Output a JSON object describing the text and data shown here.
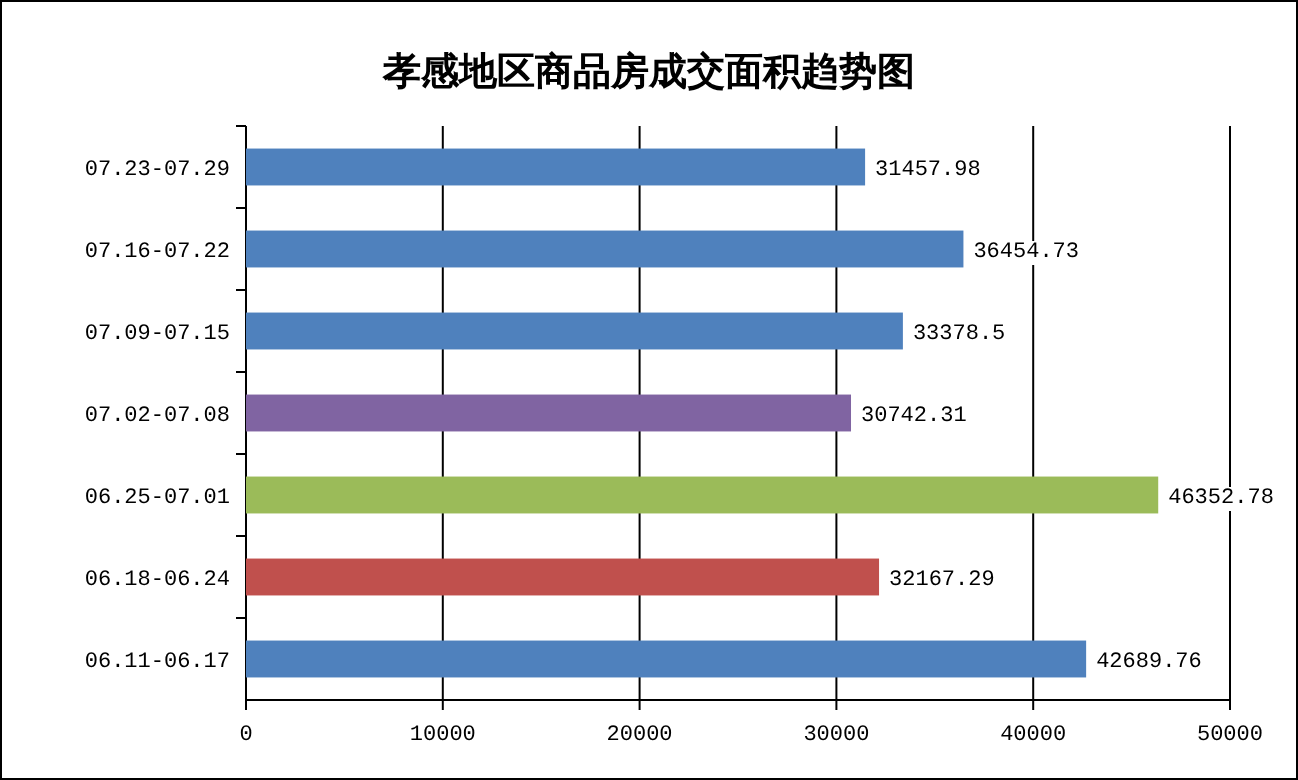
{
  "chart_data": {
    "type": "bar",
    "orientation": "horizontal",
    "title": "孝感地区商品房成交面积趋势图",
    "categories": [
      "07.23-07.29",
      "07.16-07.22",
      "07.09-07.15",
      "07.02-07.08",
      "06.25-07.01",
      "06.18-06.24",
      "06.11-06.17"
    ],
    "values": [
      31457.98,
      36454.73,
      33378.5,
      30742.31,
      46352.78,
      32167.29,
      42689.76
    ],
    "colors": [
      "#4f81bd",
      "#4f81bd",
      "#4f81bd",
      "#8064a2",
      "#9bbb59",
      "#c0504d",
      "#4f81bd"
    ],
    "xlim": [
      0,
      50000
    ],
    "xticks": [
      0,
      10000,
      20000,
      30000,
      40000,
      50000
    ],
    "grid": "x",
    "data_labels": true
  }
}
